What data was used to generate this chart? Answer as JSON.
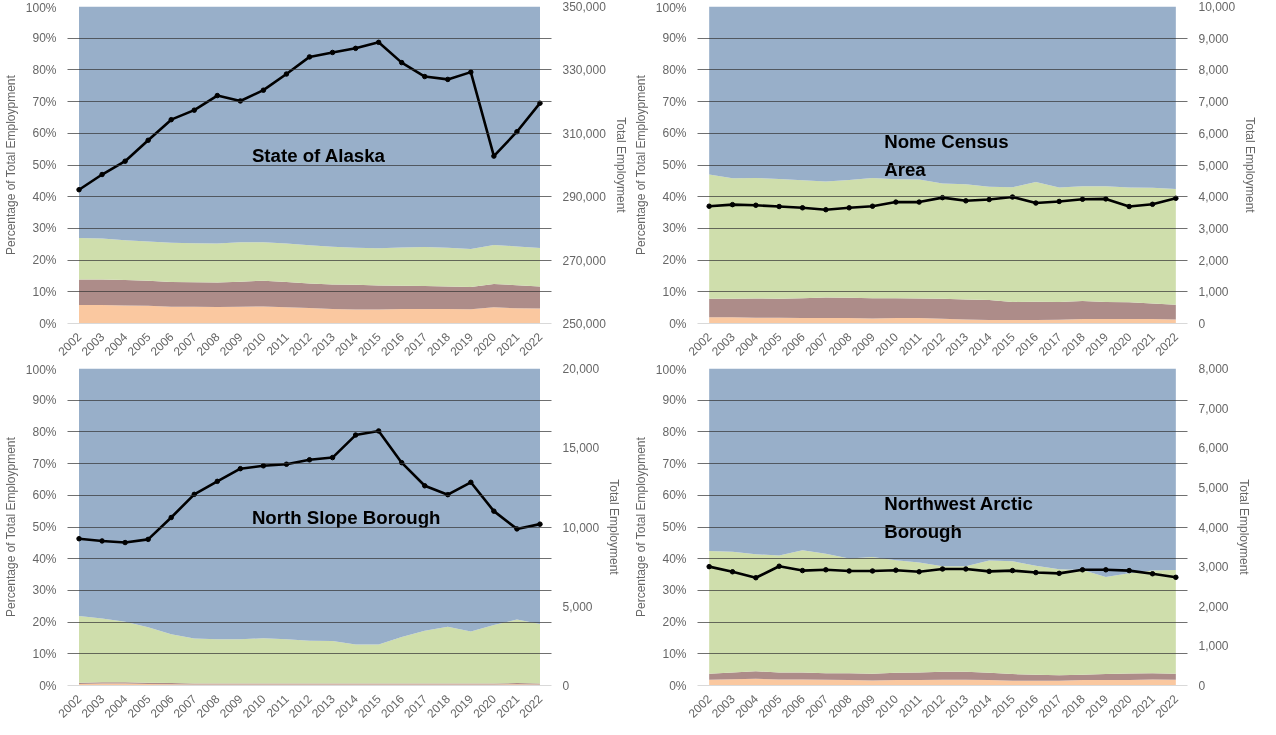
{
  "chart_data": [
    {
      "type": "area",
      "title": "State of Alaska",
      "ylabel": "Percentage of Total Employpment",
      "y2label": "Total Employment",
      "stacked": true,
      "grid": "y",
      "categories": [
        "2002",
        "2003",
        "2004",
        "2005",
        "2006",
        "2007",
        "2008",
        "2009",
        "2010",
        "2011",
        "2012",
        "2013",
        "2014",
        "2015",
        "2016",
        "2017",
        "2018",
        "2019",
        "2020",
        "2021",
        "2022"
      ],
      "ylim": [
        0,
        100
      ],
      "yticks": [
        {
          "value": 0,
          "label": "0%"
        },
        {
          "value": 10,
          "label": "10%"
        },
        {
          "value": 20,
          "label": "20%"
        },
        {
          "value": 30,
          "label": "30%"
        },
        {
          "value": 40,
          "label": "40%"
        },
        {
          "value": 50,
          "label": "50%"
        },
        {
          "value": 60,
          "label": "60%"
        },
        {
          "value": 70,
          "label": "70%"
        },
        {
          "value": 80,
          "label": "80%"
        },
        {
          "value": 90,
          "label": "90%"
        },
        {
          "value": 100,
          "label": "100%"
        }
      ],
      "y2lim": [
        250000,
        350000
      ],
      "y2ticks": [
        {
          "value": 250000,
          "label": "250,000"
        },
        {
          "value": 270000,
          "label": "270,000"
        },
        {
          "value": 290000,
          "label": "290,000"
        },
        {
          "value": 310000,
          "label": "310,000"
        },
        {
          "value": 330000,
          "label": "330,000"
        },
        {
          "value": 350000,
          "label": "350,000"
        }
      ],
      "series": [
        {
          "color": "#fac8a0",
          "values": [
            5.8,
            5.8,
            5.7,
            5.6,
            5.3,
            5.3,
            5.2,
            5.3,
            5.4,
            5.1,
            4.9,
            4.6,
            4.4,
            4.4,
            4.6,
            4.6,
            4.6,
            4.5,
            5.1,
            4.8,
            4.7
          ]
        },
        {
          "color": "#ad8c89",
          "values": [
            8.1,
            8.1,
            8.0,
            7.9,
            7.8,
            7.7,
            7.7,
            7.9,
            8.1,
            8.0,
            7.7,
            7.7,
            7.8,
            7.6,
            7.3,
            7.2,
            7.1,
            7.0,
            7.4,
            7.3,
            7.0
          ]
        },
        {
          "color": "#cfdeac",
          "values": [
            13.1,
            12.9,
            12.6,
            12.4,
            12.4,
            12.3,
            12.3,
            12.4,
            12.1,
            12.1,
            12.1,
            11.9,
            11.7,
            11.7,
            12.1,
            12.3,
            12.2,
            12.0,
            12.3,
            12.2,
            12.1
          ]
        },
        {
          "color": "#98afc9",
          "values": [
            73.0,
            73.2,
            73.7,
            74.1,
            74.5,
            74.7,
            74.8,
            74.4,
            74.4,
            74.8,
            75.3,
            75.8,
            76.1,
            76.3,
            76.0,
            75.9,
            76.1,
            76.5,
            75.2,
            75.7,
            76.2
          ]
        },
        {
          "type": "line",
          "axis": "y2",
          "color": "#000000",
          "marker": "circle",
          "line_style": "solid",
          "values": [
            292200,
            297000,
            301200,
            307800,
            314300,
            317300,
            321900,
            320200,
            323600,
            328700,
            334100,
            335500,
            336800,
            338700,
            332300,
            327900,
            327000,
            329300,
            302800,
            310500,
            319500
          ]
        }
      ]
    },
    {
      "type": "area",
      "title": "Nome Census\nArea",
      "ylabel": "Percentage of Total Employpment",
      "y2label": "Total Employment",
      "stacked": true,
      "grid": "y",
      "categories": [
        "2002",
        "2003",
        "2004",
        "2005",
        "2006",
        "2007",
        "2008",
        "2009",
        "2010",
        "2011",
        "2012",
        "2013",
        "2014",
        "2015",
        "2016",
        "2017",
        "2018",
        "2019",
        "2020",
        "2021",
        "2022"
      ],
      "ylim": [
        0,
        100
      ],
      "yticks": [
        {
          "value": 0,
          "label": "0%"
        },
        {
          "value": 10,
          "label": "10%"
        },
        {
          "value": 20,
          "label": "20%"
        },
        {
          "value": 30,
          "label": "30%"
        },
        {
          "value": 40,
          "label": "40%"
        },
        {
          "value": 50,
          "label": "50%"
        },
        {
          "value": 60,
          "label": "60%"
        },
        {
          "value": 70,
          "label": "70%"
        },
        {
          "value": 80,
          "label": "80%"
        },
        {
          "value": 90,
          "label": "90%"
        },
        {
          "value": 100,
          "label": "100%"
        }
      ],
      "y2lim": [
        0,
        10000
      ],
      "y2ticks": [
        {
          "value": 0,
          "label": "0"
        },
        {
          "value": 1000,
          "label": "1,000"
        },
        {
          "value": 2000,
          "label": "2,000"
        },
        {
          "value": 3000,
          "label": "3,000"
        },
        {
          "value": 4000,
          "label": "4,000"
        },
        {
          "value": 5000,
          "label": "5,000"
        },
        {
          "value": 6000,
          "label": "6,000"
        },
        {
          "value": 7000,
          "label": "7,000"
        },
        {
          "value": 8000,
          "label": "8,000"
        },
        {
          "value": 9000,
          "label": "9,000"
        },
        {
          "value": 10000,
          "label": "10,000"
        }
      ],
      "series": [
        {
          "color": "#fac8a0",
          "values": [
            2.0,
            2.0,
            1.8,
            1.8,
            1.7,
            1.7,
            1.7,
            1.6,
            1.7,
            1.7,
            1.5,
            1.3,
            1.1,
            1.1,
            1.1,
            1.2,
            1.4,
            1.4,
            1.4,
            1.4,
            1.3
          ]
        },
        {
          "color": "#ad8c89",
          "values": [
            5.8,
            5.8,
            6.1,
            6.0,
            6.3,
            6.5,
            6.4,
            6.4,
            6.3,
            6.2,
            6.3,
            6.3,
            6.3,
            5.7,
            5.8,
            5.6,
            5.7,
            5.4,
            5.3,
            4.9,
            4.6
          ]
        },
        {
          "color": "#cfdeac",
          "values": [
            39.2,
            38.0,
            38.0,
            37.8,
            37.2,
            36.6,
            37.2,
            37.9,
            37.5,
            37.5,
            36.4,
            36.3,
            35.7,
            36.2,
            37.7,
            36.1,
            36.2,
            36.5,
            36.2,
            36.5,
            36.5
          ]
        },
        {
          "color": "#98afc9",
          "values": [
            53.0,
            54.2,
            54.1,
            54.4,
            54.8,
            55.2,
            54.7,
            54.1,
            54.5,
            54.6,
            55.8,
            56.1,
            56.9,
            57.0,
            55.4,
            57.1,
            56.7,
            56.7,
            57.1,
            57.2,
            57.6
          ]
        },
        {
          "type": "line",
          "axis": "y2",
          "color": "#000000",
          "marker": "circle",
          "line_style": "solid",
          "values": [
            3700,
            3750,
            3730,
            3690,
            3650,
            3590,
            3650,
            3700,
            3830,
            3830,
            3970,
            3870,
            3910,
            3990,
            3800,
            3850,
            3920,
            3930,
            3690,
            3760,
            3950
          ]
        }
      ]
    },
    {
      "type": "area",
      "title": "North Slope Borough",
      "ylabel": "Percentage of Total Employpment",
      "y2label": "Total Employment",
      "stacked": true,
      "grid": "y",
      "categories": [
        "2002",
        "2003",
        "2004",
        "2005",
        "2006",
        "2007",
        "2008",
        "2009",
        "2010",
        "2011",
        "2012",
        "2013",
        "2014",
        "2015",
        "2016",
        "2017",
        "2018",
        "2019",
        "2020",
        "2021",
        "2022"
      ],
      "ylim": [
        0,
        100
      ],
      "yticks": [
        {
          "value": 0,
          "label": "0%"
        },
        {
          "value": 10,
          "label": "10%"
        },
        {
          "value": 20,
          "label": "20%"
        },
        {
          "value": 30,
          "label": "30%"
        },
        {
          "value": 40,
          "label": "40%"
        },
        {
          "value": 50,
          "label": "50%"
        },
        {
          "value": 60,
          "label": "60%"
        },
        {
          "value": 70,
          "label": "70%"
        },
        {
          "value": 80,
          "label": "80%"
        },
        {
          "value": 90,
          "label": "90%"
        },
        {
          "value": 100,
          "label": "100%"
        }
      ],
      "y2lim": [
        0,
        20000
      ],
      "y2ticks": [
        {
          "value": 0,
          "label": "0"
        },
        {
          "value": 5000,
          "label": "5,000"
        },
        {
          "value": 10000,
          "label": "10,000"
        },
        {
          "value": 15000,
          "label": "15,000"
        },
        {
          "value": 20000,
          "label": "20,000"
        }
      ],
      "series": [
        {
          "color": "#fac8a0",
          "values": [
            0.5,
            0.6,
            0.6,
            0.5,
            0.4,
            0.3,
            0.3,
            0.3,
            0.3,
            0.3,
            0.3,
            0.3,
            0.3,
            0.3,
            0.3,
            0.3,
            0.3,
            0.3,
            0.3,
            0.4,
            0.3
          ]
        },
        {
          "color": "#ad8c89",
          "values": [
            0.4,
            0.4,
            0.4,
            0.4,
            0.4,
            0.3,
            0.3,
            0.3,
            0.3,
            0.3,
            0.3,
            0.3,
            0.3,
            0.3,
            0.3,
            0.3,
            0.3,
            0.3,
            0.3,
            0.4,
            0.3
          ]
        },
        {
          "color": "#cfdeac",
          "values": [
            21.0,
            20.1,
            19.1,
            17.5,
            15.4,
            14.2,
            14.0,
            14.0,
            14.3,
            14.0,
            13.5,
            13.4,
            12.3,
            12.3,
            14.7,
            16.7,
            17.9,
            16.4,
            18.5,
            20.0,
            18.8
          ]
        },
        {
          "color": "#98afc9",
          "values": [
            78.1,
            78.9,
            79.9,
            81.6,
            83.8,
            85.2,
            85.4,
            85.4,
            85.1,
            85.4,
            85.9,
            86.0,
            87.1,
            87.1,
            84.7,
            82.7,
            81.5,
            83.0,
            80.9,
            79.2,
            80.6
          ]
        },
        {
          "type": "line",
          "axis": "y2",
          "color": "#000000",
          "marker": "circle",
          "line_style": "solid",
          "values": [
            9260,
            9120,
            9020,
            9220,
            10600,
            12060,
            12880,
            13680,
            13860,
            13960,
            14240,
            14380,
            15800,
            16060,
            14060,
            12600,
            12040,
            12820,
            11000,
            9880,
            10180
          ]
        }
      ]
    },
    {
      "type": "area",
      "title": "Northwest Arctic\nBorough",
      "ylabel": "Percentage of Total Employpment",
      "y2label": "Total Employment",
      "stacked": true,
      "grid": "y",
      "categories": [
        "2002",
        "2003",
        "2004",
        "2005",
        "2006",
        "2007",
        "2008",
        "2009",
        "2010",
        "2011",
        "2012",
        "2013",
        "2014",
        "2015",
        "2016",
        "2017",
        "2018",
        "2019",
        "2020",
        "2021",
        "2022"
      ],
      "ylim": [
        0,
        100
      ],
      "yticks": [
        {
          "value": 0,
          "label": "0%"
        },
        {
          "value": 10,
          "label": "10%"
        },
        {
          "value": 20,
          "label": "20%"
        },
        {
          "value": 30,
          "label": "30%"
        },
        {
          "value": 40,
          "label": "40%"
        },
        {
          "value": 50,
          "label": "50%"
        },
        {
          "value": 60,
          "label": "60%"
        },
        {
          "value": 70,
          "label": "70%"
        },
        {
          "value": 80,
          "label": "80%"
        },
        {
          "value": 90,
          "label": "90%"
        },
        {
          "value": 100,
          "label": "100%"
        }
      ],
      "y2lim": [
        0,
        8000
      ],
      "y2ticks": [
        {
          "value": 0,
          "label": "0"
        },
        {
          "value": 1000,
          "label": "1,000"
        },
        {
          "value": 2000,
          "label": "2,000"
        },
        {
          "value": 3000,
          "label": "3,000"
        },
        {
          "value": 4000,
          "label": "4,000"
        },
        {
          "value": 5000,
          "label": "5,000"
        },
        {
          "value": 6000,
          "label": "6,000"
        },
        {
          "value": 7000,
          "label": "7,000"
        },
        {
          "value": 8000,
          "label": "8,000"
        }
      ],
      "series": [
        {
          "color": "#fac8a0",
          "values": [
            1.8,
            2.0,
            2.1,
            1.9,
            1.9,
            1.8,
            1.7,
            1.6,
            1.7,
            1.7,
            1.8,
            1.8,
            1.7,
            1.5,
            1.5,
            1.5,
            1.7,
            1.7,
            1.7,
            1.9,
            1.8
          ]
        },
        {
          "color": "#ad8c89",
          "values": [
            1.9,
            2.1,
            2.4,
            2.2,
            2.2,
            2.1,
            2.2,
            2.1,
            2.3,
            2.4,
            2.5,
            2.5,
            2.3,
            2.1,
            1.9,
            1.7,
            1.7,
            1.9,
            2.1,
            2.0,
            1.9
          ]
        },
        {
          "color": "#cfdeac",
          "values": [
            38.7,
            38.1,
            36.9,
            36.9,
            38.6,
            37.7,
            36.2,
            36.8,
            35.5,
            34.7,
            33.3,
            33.3,
            35.4,
            35.6,
            34.4,
            33.5,
            33.0,
            30.6,
            31.6,
            32.4,
            32.7
          ]
        },
        {
          "color": "#98afc9",
          "values": [
            57.6,
            57.8,
            58.6,
            59.0,
            57.3,
            58.4,
            59.9,
            59.5,
            60.5,
            61.2,
            62.4,
            62.4,
            60.6,
            60.8,
            62.2,
            63.3,
            63.6,
            65.8,
            64.6,
            63.7,
            63.6
          ]
        },
        {
          "type": "line",
          "axis": "y2",
          "color": "#000000",
          "marker": "circle",
          "line_style": "solid",
          "values": [
            3000,
            2870,
            2720,
            3010,
            2900,
            2920,
            2890,
            2890,
            2910,
            2870,
            2940,
            2940,
            2880,
            2900,
            2850,
            2830,
            2920,
            2920,
            2900,
            2820,
            2730
          ]
        }
      ]
    }
  ]
}
